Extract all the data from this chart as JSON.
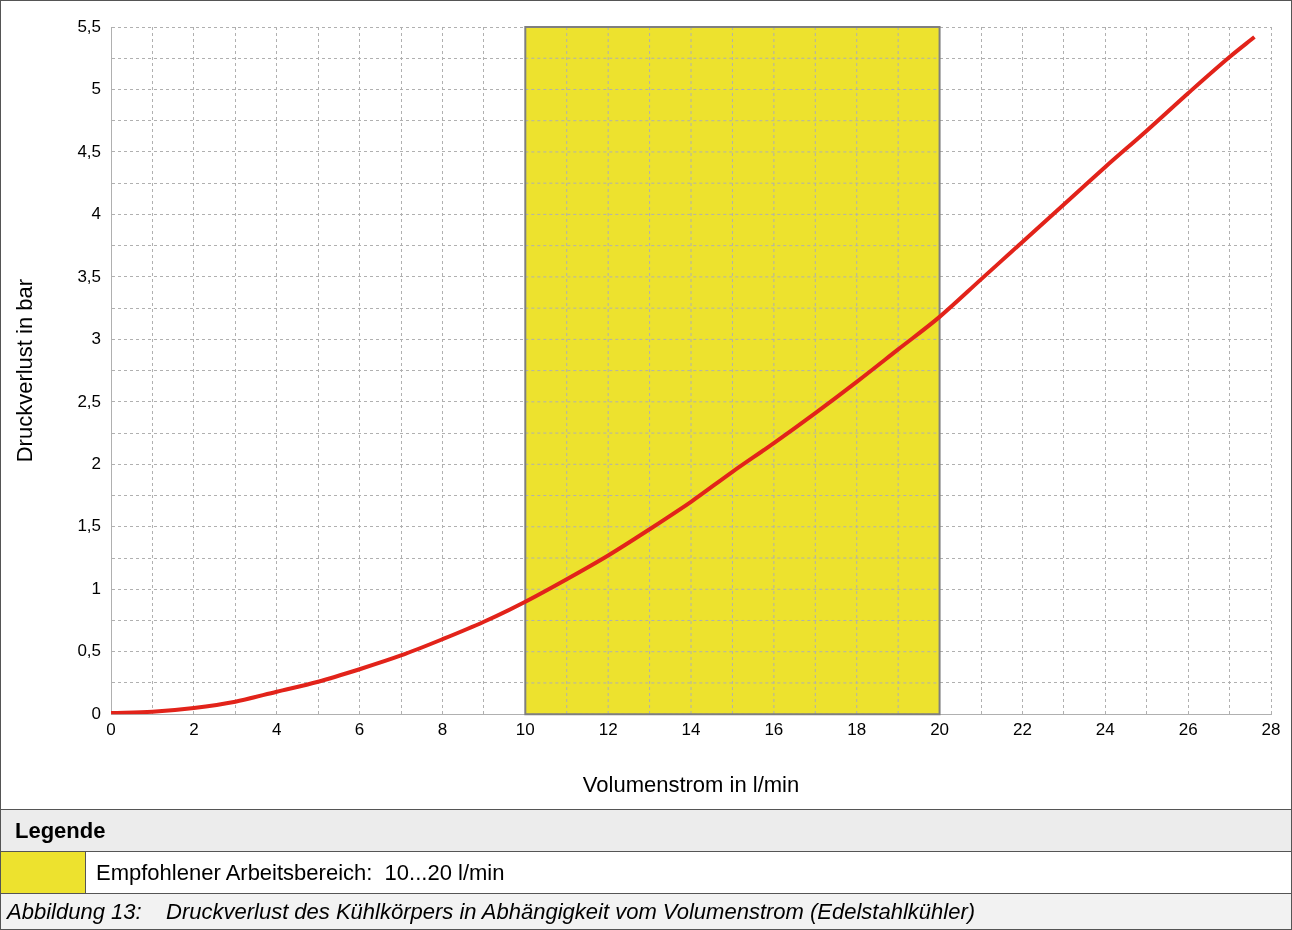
{
  "chart_data": {
    "type": "line",
    "xlabel": "Volumenstrom in l/min",
    "ylabel": "Druckverlust in bar",
    "legend_title": "Legende",
    "x": [
      0,
      1,
      2,
      3,
      4,
      5,
      6,
      7,
      8,
      9,
      10,
      11,
      12,
      13,
      14,
      15,
      16,
      17,
      18,
      19,
      20,
      21,
      22,
      23,
      24,
      25,
      26,
      27,
      27.6
    ],
    "series": [
      {
        "color": "#e2231a",
        "values": [
          0.01,
          0.02,
          0.05,
          0.1,
          0.18,
          0.26,
          0.36,
          0.47,
          0.6,
          0.74,
          0.9,
          1.08,
          1.27,
          1.48,
          1.7,
          1.94,
          2.17,
          2.41,
          2.66,
          2.92,
          3.18,
          3.48,
          3.78,
          4.08,
          4.38,
          4.67,
          4.97,
          5.26,
          5.42
        ]
      }
    ],
    "xlim": [
      0,
      28
    ],
    "xticks": [
      0,
      {
        "value": 1,
        "label": null
      },
      2,
      {
        "value": 3,
        "label": null
      },
      4,
      {
        "value": 5,
        "label": null
      },
      6,
      {
        "value": 7,
        "label": null
      },
      8,
      {
        "value": 9,
        "label": null
      },
      10,
      {
        "value": 11,
        "label": null
      },
      12,
      {
        "value": 13,
        "label": null
      },
      14,
      {
        "value": 15,
        "label": null
      },
      16,
      {
        "value": 17,
        "label": null
      },
      18,
      {
        "value": 19,
        "label": null
      },
      20,
      {
        "value": 21,
        "label": null
      },
      22,
      {
        "value": 23,
        "label": null
      },
      24,
      {
        "value": 25,
        "label": null
      },
      26,
      {
        "value": 27,
        "label": null
      },
      28
    ],
    "ylim": [
      0,
      5.5
    ],
    "yticks": [
      0,
      {
        "value": 0.25,
        "label": null
      },
      {
        "value": 0.5,
        "label": "0,5"
      },
      {
        "value": 0.75,
        "label": null
      },
      1,
      {
        "value": 1.25,
        "label": null
      },
      {
        "value": 1.5,
        "label": "1,5"
      },
      {
        "value": 1.75,
        "label": null
      },
      2,
      {
        "value": 2.25,
        "label": null
      },
      {
        "value": 2.5,
        "label": "2,5"
      },
      {
        "value": 2.75,
        "label": null
      },
      3,
      {
        "value": 3.25,
        "label": null
      },
      {
        "value": 3.5,
        "label": "3,5"
      },
      {
        "value": 3.75,
        "label": null
      },
      4,
      {
        "value": 4.25,
        "label": null
      },
      {
        "value": 4.5,
        "label": "4,5"
      },
      {
        "value": 4.75,
        "label": null
      },
      5,
      {
        "value": 5.25,
        "label": null
      },
      {
        "value": 5.5,
        "label": "5,5"
      }
    ],
    "grid": true,
    "marker": "none",
    "line_style": "solid",
    "bands": [
      {
        "axis": "x",
        "from": 10,
        "to": 20,
        "label": "Empfohlener Arbeitsbereich:  10...20 l/min",
        "color": "#ede22e"
      }
    ],
    "annotations": [
      "Abbildung 13:    Druckverlust des Kühlkörpers in Abhängigkeit vom Volumenstrom (Edelstahlkühler)"
    ]
  }
}
